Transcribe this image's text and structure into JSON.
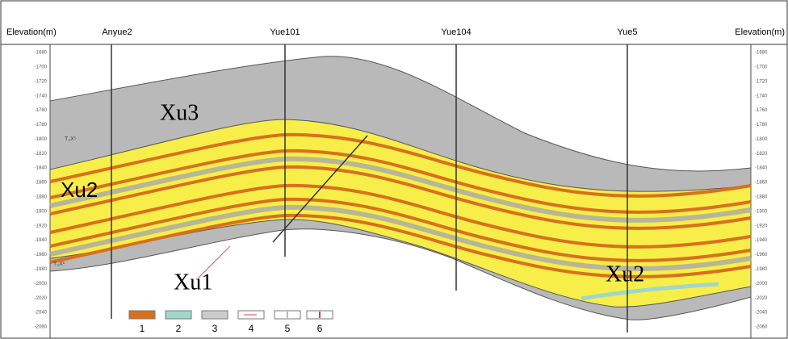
{
  "header": {
    "left_axis_title": "Elevation(m)",
    "right_axis_title": "Elevation(m)"
  },
  "wells": [
    "Anyue2",
    "Yue101",
    "Yue104",
    "Yue5"
  ],
  "elevation_ticks": [
    "-1680",
    "-1700",
    "-1720",
    "-1740",
    "-1760",
    "-1780",
    "-1800",
    "-1820",
    "-1840",
    "-1860",
    "-1880",
    "-1900",
    "-1920",
    "-1940",
    "-1960",
    "-1980",
    "-2000",
    "-2020",
    "-2040",
    "-2060"
  ],
  "formations": [
    "Xu3",
    "Xu2",
    "Xu1",
    "Xu2"
  ],
  "horizons": [
    "T₃X⁵",
    "T₃X¹"
  ],
  "legend": [
    "1",
    "2",
    "3",
    "4",
    "5",
    "6"
  ]
}
